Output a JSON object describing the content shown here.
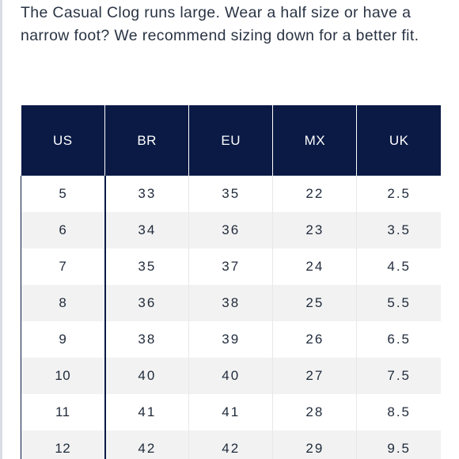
{
  "fit_note": "The Casual Clog runs large. Wear a half size or have a narrow foot? We recommend sizing down for a better fit.",
  "size_chart": {
    "headers": [
      "US",
      "BR",
      "EU",
      "MX",
      "UK"
    ],
    "rows": [
      [
        "5",
        "33",
        "35",
        "22",
        "2.5"
      ],
      [
        "6",
        "34",
        "36",
        "23",
        "3.5"
      ],
      [
        "7",
        "35",
        "37",
        "24",
        "4.5"
      ],
      [
        "8",
        "36",
        "38",
        "25",
        "5.5"
      ],
      [
        "9",
        "38",
        "39",
        "26",
        "6.5"
      ],
      [
        "10",
        "40",
        "40",
        "27",
        "7.5"
      ],
      [
        "11",
        "41",
        "41",
        "28",
        "8.5"
      ],
      [
        "12",
        "42",
        "42",
        "29",
        "9.5"
      ]
    ]
  },
  "colors": {
    "header_background": "#0a1a45",
    "header_text": "#ffffff",
    "stripe": "#f2f2f2",
    "body_text": "#1f2a3a"
  }
}
